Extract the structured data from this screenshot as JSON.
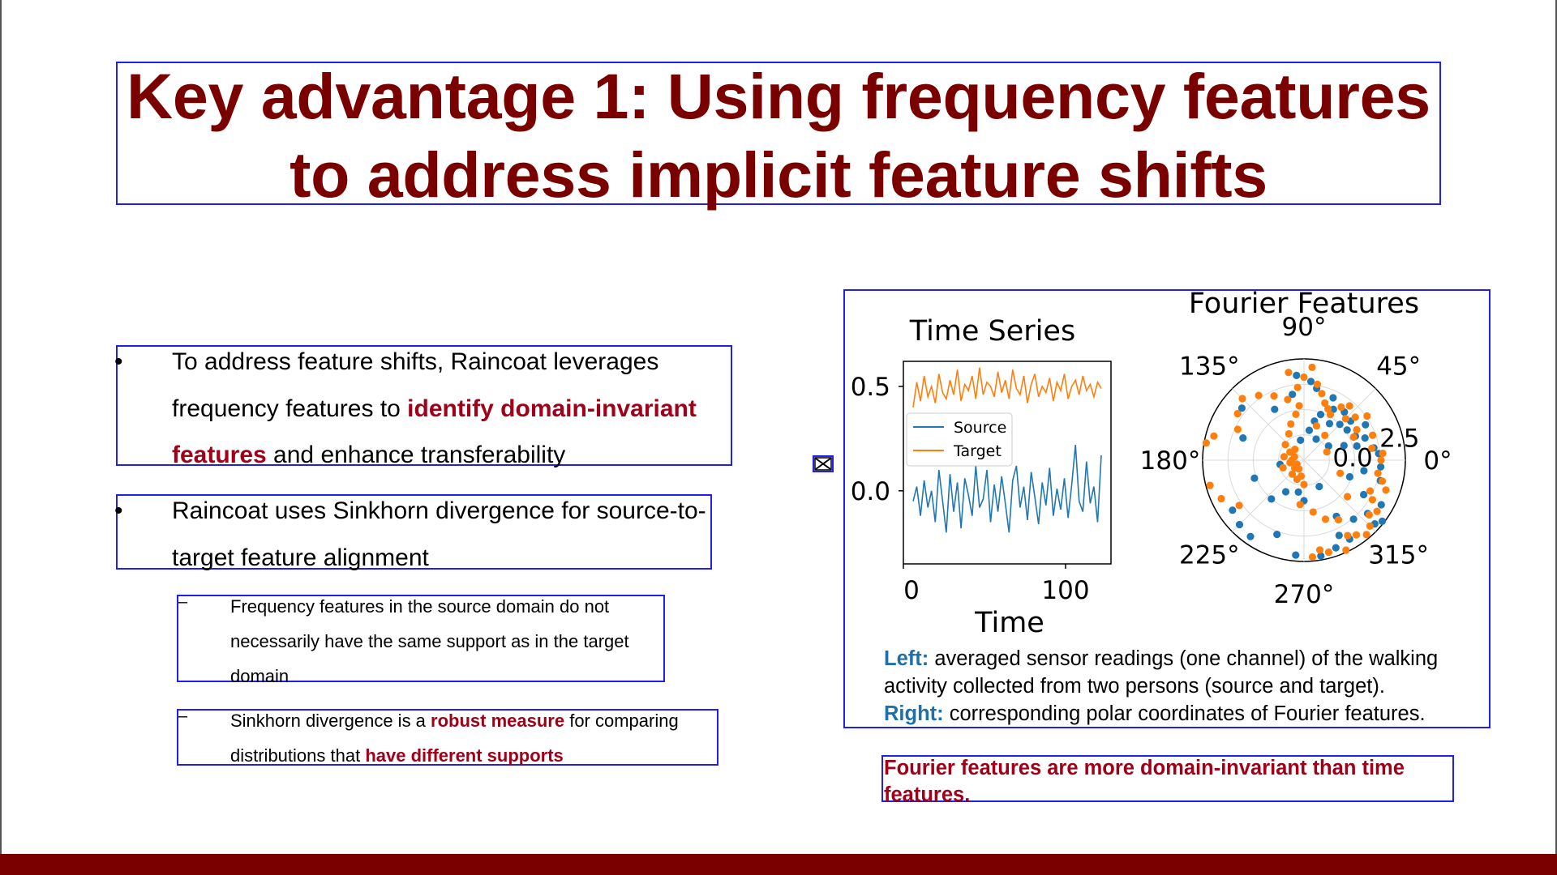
{
  "slide": {
    "title": "Key advantage 1: Using frequency features to address implicit feature shifts",
    "bullet1": {
      "bullet": "•",
      "text_a": "To address feature shifts, Raincoat leverages frequency features to ",
      "highlight": "identify domain-invariant features",
      "text_b": " and enhance transferability"
    },
    "bullet2": {
      "bullet": "•",
      "text": "Raincoat uses Sinkhorn divergence for source-to-target feature alignment"
    },
    "sub1": {
      "dash": "–",
      "text": "Frequency features in the source domain do not necessarily have the same support as in the target domain"
    },
    "sub2": {
      "dash": "–",
      "text_a": "Sinkhorn divergence is a ",
      "highlight_a": "robust measure",
      "text_b": " for comparing distributions that ",
      "highlight_b": "have different supports"
    },
    "figure": {
      "caption": {
        "left_label": "Left:",
        "left_text": " averaged sensor readings (one channel) of the walking activity collected from two persons (source and target).",
        "right_label": "Right:",
        "right_text": " corresponding polar coordinates of Fourier features."
      }
    },
    "conclusion": "Fourier features are more domain-invariant than time features."
  },
  "chart_data": [
    {
      "type": "line",
      "title": "Time Series",
      "xlabel": "Time",
      "ylabel": "",
      "xlim": [
        0,
        128
      ],
      "x_ticks": [
        "0",
        "100"
      ],
      "y_ticks": [
        "0.0",
        "0.5"
      ],
      "legend": {
        "position": "center-left",
        "entries": [
          "Source",
          "Target"
        ]
      },
      "series": [
        {
          "name": "Source",
          "color": "#1f77b4",
          "values": [
            -0.05,
            0.02,
            -0.12,
            0.05,
            -0.08,
            0.0,
            -0.15,
            0.1,
            -0.05,
            -0.2,
            0.08,
            -0.1,
            0.04,
            -0.18,
            0.06,
            -0.02,
            -0.12,
            0.12,
            -0.08,
            -0.04,
            0.1,
            -0.15,
            0.03,
            -0.1,
            0.07,
            -0.06,
            -0.2,
            0.05,
            0.12,
            -0.08,
            0.02,
            -0.14,
            0.09,
            -0.03,
            -0.16,
            0.04,
            -0.07,
            0.11,
            -0.12,
            0.01,
            -0.09,
            0.06,
            -0.13,
            0.03,
            0.22,
            -0.05,
            -0.1,
            0.14,
            -0.06,
            0.02,
            -0.15,
            0.17
          ]
        },
        {
          "name": "Target",
          "color": "#ff7f0e",
          "values": [
            0.4,
            0.52,
            0.43,
            0.55,
            0.45,
            0.5,
            0.42,
            0.56,
            0.47,
            0.44,
            0.53,
            0.46,
            0.58,
            0.43,
            0.51,
            0.48,
            0.55,
            0.44,
            0.59,
            0.46,
            0.52,
            0.5,
            0.45,
            0.57,
            0.47,
            0.53,
            0.44,
            0.58,
            0.49,
            0.46,
            0.55,
            0.42,
            0.51,
            0.56,
            0.45,
            0.5,
            0.47,
            0.54,
            0.43,
            0.52,
            0.48,
            0.56,
            0.44,
            0.5,
            0.53,
            0.46,
            0.55,
            0.48,
            0.51,
            0.45,
            0.52,
            0.49
          ]
        }
      ]
    },
    {
      "type": "scatter",
      "title": "Fourier Features",
      "polar": true,
      "angle_labels": [
        "0°",
        "45°",
        "90°",
        "135°",
        "180°",
        "225°",
        "270°",
        "315°"
      ],
      "radial_labels": [
        "0.0",
        "2.5"
      ],
      "rmax": 5,
      "series": [
        {
          "name": "Source",
          "color": "#1f77b4",
          "points": [
            [
              20,
              3.2
            ],
            [
              25,
              2.8
            ],
            [
              30,
              3.5
            ],
            [
              35,
              2.6
            ],
            [
              40,
              3.0
            ],
            [
              45,
              2.5
            ],
            [
              50,
              3.1
            ],
            [
              55,
              2.2
            ],
            [
              60,
              2.9
            ],
            [
              65,
              3.4
            ],
            [
              70,
              2.4
            ],
            [
              75,
              2.0
            ],
            [
              80,
              3.6
            ],
            [
              85,
              3.9
            ],
            [
              95,
              4.2
            ],
            [
              100,
              3.3
            ],
            [
              120,
              2.9
            ],
            [
              140,
              4.0
            ],
            [
              160,
              3.2
            ],
            [
              200,
              2.6
            ],
            [
              215,
              4.3
            ],
            [
              225,
              4.5
            ],
            [
              235,
              4.6
            ],
            [
              250,
              3.9
            ],
            [
              265,
              4.7
            ],
            [
              290,
              4.6
            ],
            [
              300,
              4.5
            ],
            [
              320,
              4.1
            ],
            [
              330,
              4.4
            ],
            [
              345,
              3.9
            ],
            [
              10,
              3.5
            ],
            [
              5,
              3.7
            ],
            [
              355,
              3.8
            ],
            [
              15,
              2.7
            ],
            [
              270,
              2.0
            ],
            [
              280,
              4.8
            ],
            [
              300,
              3.2
            ],
            [
              230,
              2.5
            ],
            [
              240,
              1.8
            ],
            [
              60,
              1.2
            ],
            [
              80,
              1.5
            ],
            [
              100,
              1.0
            ],
            [
              190,
              1.2
            ],
            [
              260,
              1.6
            ],
            [
              300,
              1.5
            ],
            [
              340,
              2.4
            ],
            [
              350,
              3.0
            ],
            [
              30,
              1.4
            ],
            [
              20,
              2.1
            ],
            [
              330,
              3.4
            ],
            [
              310,
              3.8
            ],
            [
              295,
              4.1
            ],
            [
              318,
              4.7
            ],
            [
              322,
              4.9
            ]
          ]
        },
        {
          "name": "Target",
          "color": "#ff7f0e",
          "points": [
            [
              90,
              4.1
            ],
            [
              80,
              3.8
            ],
            [
              85,
              4.6
            ],
            [
              75,
              3.4
            ],
            [
              70,
              3.0
            ],
            [
              65,
              2.8
            ],
            [
              60,
              2.6
            ],
            [
              55,
              3.2
            ],
            [
              50,
              3.5
            ],
            [
              45,
              2.9
            ],
            [
              40,
              3.3
            ],
            [
              35,
              3.8
            ],
            [
              30,
              3.0
            ],
            [
              25,
              2.7
            ],
            [
              20,
              3.6
            ],
            [
              10,
              3.4
            ],
            [
              5,
              3.9
            ],
            [
              0,
              3.8
            ],
            [
              350,
              3.7
            ],
            [
              345,
              4.0
            ],
            [
              340,
              4.3
            ],
            [
              335,
              3.6
            ],
            [
              330,
              3.9
            ],
            [
              325,
              4.4
            ],
            [
              320,
              4.2
            ],
            [
              315,
              4.6
            ],
            [
              310,
              4.8
            ],
            [
              305,
              4.5
            ],
            [
              300,
              4.3
            ],
            [
              295,
              4.9
            ],
            [
              285,
              4.7
            ],
            [
              280,
              4.5
            ],
            [
              275,
              4.8
            ],
            [
              270,
              1.2
            ],
            [
              260,
              0.8
            ],
            [
              250,
              1.0
            ],
            [
              240,
              0.5
            ],
            [
              230,
              0.9
            ],
            [
              220,
              0.6
            ],
            [
              210,
              0.4
            ],
            [
              200,
              1.1
            ],
            [
              190,
              0.7
            ],
            [
              180,
              0.6
            ],
            [
              170,
              1.0
            ],
            [
              160,
              0.5
            ],
            [
              150,
              0.8
            ],
            [
              140,
              1.2
            ],
            [
              130,
              0.7
            ],
            [
              120,
              1.5
            ],
            [
              110,
              1.9
            ],
            [
              100,
              2.3
            ],
            [
              95,
              2.7
            ],
            [
              105,
              3.1
            ],
            [
              115,
              3.5
            ],
            [
              125,
              3.9
            ],
            [
              135,
              4.3
            ],
            [
              145,
              4.0
            ],
            [
              155,
              3.6
            ],
            [
              165,
              4.6
            ],
            [
              170,
              4.9
            ],
            [
              195,
              4.8
            ],
            [
              205,
              4.5
            ],
            [
              215,
              3.9
            ],
            [
              100,
              4.4
            ],
            [
              95,
              3.6
            ],
            [
              70,
              1.8
            ],
            [
              50,
              1.6
            ],
            [
              20,
              1.2
            ],
            [
              340,
              1.9
            ],
            [
              320,
              2.8
            ],
            [
              300,
              3.4
            ],
            [
              290,
              3.1
            ],
            [
              280,
              2.6
            ],
            [
              265,
              2.2
            ]
          ]
        }
      ]
    }
  ]
}
